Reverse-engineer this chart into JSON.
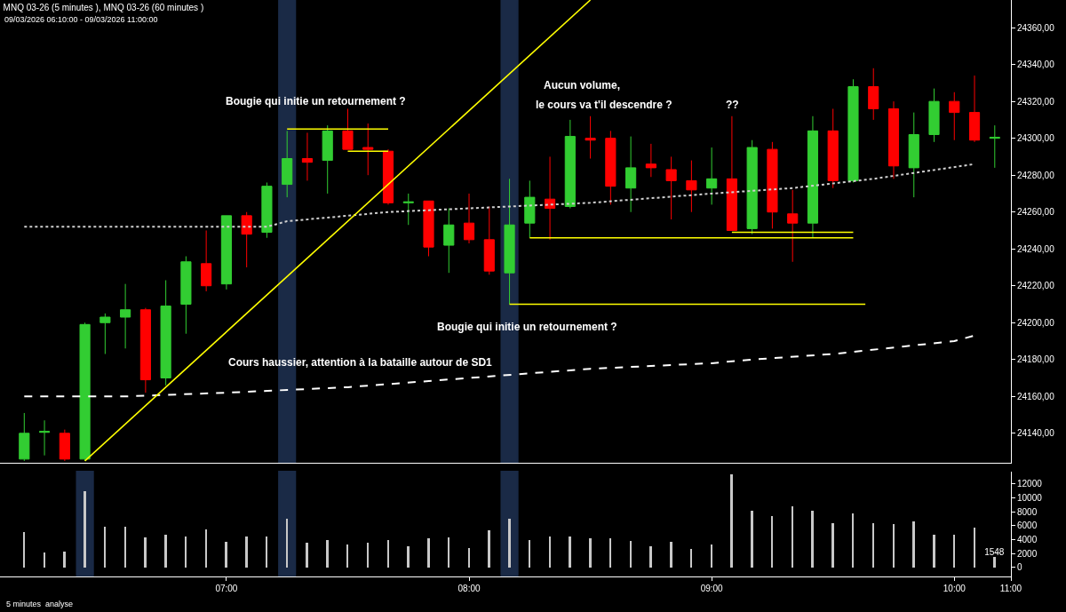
{
  "chart_data": [
    {
      "type": "candlestick",
      "title": "MNQ 03-26 (5 minutes ), MNQ 03-26 (60 minutes )",
      "subtitle": "09/03/2026 06:10:00 - 09/03/2026 11:00:00",
      "x": [
        "2026-03-09T06:10",
        "2026-03-09T06:15",
        "2026-03-09T06:20",
        "2026-03-09T06:25",
        "2026-03-09T06:30",
        "2026-03-09T06:35",
        "2026-03-09T06:40",
        "2026-03-09T06:45",
        "2026-03-09T06:50",
        "2026-03-09T06:55",
        "2026-03-09T07:00",
        "2026-03-09T07:05",
        "2026-03-09T07:10",
        "2026-03-09T07:15",
        "2026-03-09T07:20",
        "2026-03-09T07:25",
        "2026-03-09T07:30",
        "2026-03-09T07:35",
        "2026-03-09T07:40",
        "2026-03-09T07:45",
        "2026-03-09T07:50",
        "2026-03-09T07:55",
        "2026-03-09T08:00",
        "2026-03-09T08:05",
        "2026-03-09T08:10",
        "2026-03-09T08:15",
        "2026-03-09T08:20",
        "2026-03-09T08:25",
        "2026-03-09T08:30",
        "2026-03-09T08:35",
        "2026-03-09T08:40",
        "2026-03-09T08:45",
        "2026-03-09T08:50",
        "2026-03-09T08:55",
        "2026-03-09T09:00",
        "2026-03-09T09:05",
        "2026-03-09T09:10",
        "2026-03-09T09:15",
        "2026-03-09T09:20",
        "2026-03-09T09:25",
        "2026-03-09T09:30",
        "2026-03-09T09:35",
        "2026-03-09T09:40",
        "2026-03-09T09:45",
        "2026-03-09T09:50",
        "2026-03-09T09:55",
        "2026-03-09T10:00",
        "2026-03-09T10:05",
        "2026-03-09T10:10"
      ],
      "ohlc": [
        [
          24126,
          24151,
          24125,
          24140
        ],
        [
          24140.5,
          24147,
          24128,
          24141
        ],
        [
          24140,
          24142,
          24125,
          24126
        ],
        [
          24126,
          24200,
          24125,
          24199
        ],
        [
          24200,
          24205,
          24183,
          24203
        ],
        [
          24203,
          24221,
          24186,
          24207
        ],
        [
          24207,
          24208,
          24162,
          24169
        ],
        [
          24170,
          24223,
          24166,
          24209
        ],
        [
          24210,
          24236,
          24194,
          24233
        ],
        [
          24232,
          24250,
          24217,
          24220
        ],
        [
          24221,
          24258,
          24218,
          24258
        ],
        [
          24258,
          24260,
          24230,
          24248
        ],
        [
          24249,
          24276,
          24246,
          24274
        ],
        [
          24275,
          24304,
          24268,
          24289
        ],
        [
          24289,
          24303,
          24277,
          24287
        ],
        [
          24288,
          24307,
          24270,
          24304
        ],
        [
          24304,
          24316,
          24294,
          24294
        ],
        [
          24295,
          24308,
          24280,
          24294
        ],
        [
          24293,
          24294,
          24264,
          24265
        ],
        [
          24265,
          24270,
          24253,
          24265.5
        ],
        [
          24266,
          24266,
          24236,
          24241
        ],
        [
          24242,
          24262,
          24227,
          24253
        ],
        [
          24254,
          24270,
          24243,
          24245
        ],
        [
          24245,
          24263,
          24226,
          24228
        ],
        [
          24227,
          24278,
          24210,
          24253
        ],
        [
          24254,
          24277,
          24246,
          24268
        ],
        [
          24267,
          24290,
          24245,
          24262
        ],
        [
          24263,
          24310,
          24262,
          24301
        ],
        [
          24300,
          24312,
          24289,
          24299
        ],
        [
          24300,
          24304,
          24264,
          24274
        ],
        [
          24273,
          24301,
          24260,
          24284
        ],
        [
          24286,
          24297,
          24279,
          24284
        ],
        [
          24283,
          24290,
          24256,
          24277
        ],
        [
          24277,
          24288,
          24260,
          24272
        ],
        [
          24273,
          24295,
          24264,
          24278
        ],
        [
          24278,
          24312,
          24250,
          24250
        ],
        [
          24251,
          24299,
          24248,
          24295
        ],
        [
          24294,
          24298,
          24251,
          24260
        ],
        [
          24259,
          24272,
          24233,
          24254
        ],
        [
          24254,
          24312,
          24246,
          24304
        ],
        [
          24304,
          24316,
          24273,
          24277
        ],
        [
          24277,
          24332,
          24276,
          24328
        ],
        [
          24328,
          24338,
          24310,
          24316
        ],
        [
          24316,
          24320,
          24278,
          24285
        ],
        [
          24284,
          24314,
          24268,
          24302
        ],
        [
          24302,
          24327,
          24298,
          24320
        ],
        [
          24320,
          24325,
          24299,
          24314
        ],
        [
          24314,
          24334,
          24298,
          24299
        ],
        [
          24300,
          24307,
          24284,
          24300.5
        ]
      ],
      "colors": [
        "#32cd32",
        "#32cd32",
        "#ff0000",
        "#32cd32",
        "#32cd32",
        "#32cd32",
        "#ff0000",
        "#32cd32",
        "#32cd32",
        "#ff0000",
        "#32cd32",
        "#ff0000",
        "#32cd32",
        "#32cd32",
        "#ff0000",
        "#32cd32",
        "#ff0000",
        "#ff0000",
        "#ff0000",
        "#32cd32",
        "#ff0000",
        "#32cd32",
        "#ff0000",
        "#ff0000",
        "#32cd32",
        "#32cd32",
        "#ff0000",
        "#32cd32",
        "#ff0000",
        "#ff0000",
        "#32cd32",
        "#ff0000",
        "#ff0000",
        "#ff0000",
        "#32cd32",
        "#ff0000",
        "#32cd32",
        "#ff0000",
        "#ff0000",
        "#32cd32",
        "#ff0000",
        "#32cd32",
        "#ff0000",
        "#ff0000",
        "#32cd32",
        "#32cd32",
        "#ff0000",
        "#ff0000",
        "#32cd32"
      ],
      "series": [
        {
          "type": "line",
          "color": "#d0d0d0",
          "line_style": "dotted",
          "x": [
            "2026-03-09T06:10",
            "2026-03-09T07:10",
            "2026-03-09T07:15",
            "2026-03-09T07:40",
            "2026-03-09T08:00",
            "2026-03-09T08:30",
            "2026-03-09T09:00",
            "2026-03-09T09:20",
            "2026-03-09T09:40",
            "2026-03-09T10:05"
          ],
          "values": [
            24252,
            24252,
            24255,
            24260,
            24262,
            24265,
            24270,
            24273,
            24278,
            24286
          ]
        },
        {
          "type": "line",
          "color": "#ffffff",
          "line_style": "dashed",
          "x": [
            "2026-03-09T06:10",
            "2026-03-09T06:35",
            "2026-03-09T07:00",
            "2026-03-09T07:30",
            "2026-03-09T08:00",
            "2026-03-09T08:30",
            "2026-03-09T09:00",
            "2026-03-09T09:10",
            "2026-03-09T09:30",
            "2026-03-09T10:00",
            "2026-03-09T10:05"
          ],
          "values": [
            24160,
            24160,
            24162,
            24165,
            24170,
            24175,
            24178,
            24180,
            24183,
            24190,
            24193
          ]
        },
        {
          "type": "line",
          "color": "#ffff00",
          "line_style": "solid",
          "x": [
            "2026-03-09T06:25",
            "2026-03-09T08:30"
          ],
          "values": [
            24125,
            24375
          ]
        },
        {
          "type": "line",
          "color": "#ffff00",
          "line_style": "solid",
          "x": [
            "2026-03-09T07:15",
            "2026-03-09T07:40"
          ],
          "values": [
            24305,
            24305
          ]
        },
        {
          "type": "line",
          "color": "#ffff00",
          "line_style": "solid",
          "x": [
            "2026-03-09T07:30",
            "2026-03-09T07:40"
          ],
          "values": [
            24293,
            24293
          ]
        },
        {
          "type": "line",
          "color": "#ffff00",
          "line_style": "solid",
          "x": [
            "2026-03-09T08:15",
            "2026-03-09T09:35"
          ],
          "values": [
            24246,
            24246
          ]
        },
        {
          "type": "line",
          "color": "#ffff00",
          "line_style": "solid",
          "x": [
            "2026-03-09T09:05",
            "2026-03-09T09:35"
          ],
          "values": [
            24249,
            24249
          ]
        },
        {
          "type": "line",
          "color": "#ffff00",
          "line_style": "solid",
          "x": [
            "2026-03-09T08:10",
            "2026-03-09T09:38"
          ],
          "values": [
            24210,
            24210
          ]
        }
      ],
      "bands": [
        {
          "axis": "x",
          "from": "2026-03-09T07:13",
          "to": "2026-03-09T07:17",
          "color": "#4a78c8"
        },
        {
          "axis": "x",
          "from": "2026-03-09T08:08",
          "to": "2026-03-09T08:12",
          "color": "#4a78c8"
        }
      ],
      "annotations": [
        "Bougie qui initie un retournement ?",
        "Aucun volume,",
        "le cours va t'il descendre ?",
        "??",
        "Bougie qui initie un retournement ?",
        "Cours haussier, attention à la bataille autour de SD1"
      ],
      "xlim": [
        "2026-03-09T06:04",
        "2026-03-09T10:14"
      ],
      "ylim": [
        24124,
        24375
      ],
      "yticks": [
        {
          "value": 24140,
          "label": "24140,00"
        },
        {
          "value": 24160,
          "label": "24160,00"
        },
        {
          "value": 24180,
          "label": "24180,00"
        },
        {
          "value": 24200,
          "label": "24200,00"
        },
        {
          "value": 24220,
          "label": "24220,00"
        },
        {
          "value": 24240,
          "label": "24240,00"
        },
        {
          "value": 24260,
          "label": "24260,00"
        },
        {
          "value": 24280,
          "label": "24280,00"
        },
        {
          "value": 24300,
          "label": "24300,00"
        },
        {
          "value": 24320,
          "label": "24320,00"
        },
        {
          "value": 24340,
          "label": "24340,00"
        },
        {
          "value": 24360,
          "label": "24360,00"
        }
      ],
      "tick_labels": "y"
    },
    {
      "type": "bar",
      "x": [
        "2026-03-09T06:10",
        "2026-03-09T06:15",
        "2026-03-09T06:20",
        "2026-03-09T06:25",
        "2026-03-09T06:30",
        "2026-03-09T06:35",
        "2026-03-09T06:40",
        "2026-03-09T06:45",
        "2026-03-09T06:50",
        "2026-03-09T06:55",
        "2026-03-09T07:00",
        "2026-03-09T07:05",
        "2026-03-09T07:10",
        "2026-03-09T07:15",
        "2026-03-09T07:20",
        "2026-03-09T07:25",
        "2026-03-09T07:30",
        "2026-03-09T07:35",
        "2026-03-09T07:40",
        "2026-03-09T07:45",
        "2026-03-09T07:50",
        "2026-03-09T07:55",
        "2026-03-09T08:00",
        "2026-03-09T08:05",
        "2026-03-09T08:10",
        "2026-03-09T08:15",
        "2026-03-09T08:20",
        "2026-03-09T08:25",
        "2026-03-09T08:30",
        "2026-03-09T08:35",
        "2026-03-09T08:40",
        "2026-03-09T08:45",
        "2026-03-09T08:50",
        "2026-03-09T08:55",
        "2026-03-09T09:00",
        "2026-03-09T09:05",
        "2026-03-09T09:10",
        "2026-03-09T09:15",
        "2026-03-09T09:20",
        "2026-03-09T09:25",
        "2026-03-09T09:30",
        "2026-03-09T09:35",
        "2026-03-09T09:40",
        "2026-03-09T09:45",
        "2026-03-09T09:50",
        "2026-03-09T09:55",
        "2026-03-09T10:00",
        "2026-03-09T10:05",
        "2026-03-09T10:10"
      ],
      "series": [
        {
          "color": "#c8c8c8",
          "values": [
            5100,
            2200,
            2300,
            11000,
            5900,
            5800,
            4300,
            4700,
            4400,
            5500,
            3700,
            4400,
            4400,
            7000,
            3600,
            3900,
            3300,
            3500,
            3900,
            3000,
            4200,
            4300,
            2800,
            5300,
            7000,
            3900,
            4500,
            4500,
            4200,
            4200,
            3800,
            3100,
            3700,
            2700,
            3300,
            13400,
            8100,
            7400,
            8800,
            8100,
            6400,
            7800,
            6300,
            6200,
            6600,
            4700,
            4700,
            5700,
            1548
          ]
        }
      ],
      "bands": [
        {
          "axis": "x",
          "from": "2026-03-09T06:23",
          "to": "2026-03-09T06:27",
          "color": "#4a78c8"
        },
        {
          "axis": "x",
          "from": "2026-03-09T07:13",
          "to": "2026-03-09T07:17",
          "color": "#4a78c8"
        },
        {
          "axis": "x",
          "from": "2026-03-09T08:08",
          "to": "2026-03-09T08:12",
          "color": "#4a78c8"
        }
      ],
      "annotations": [
        "5 minutes  analyse"
      ],
      "xlim": [
        "2026-03-09T06:04",
        "2026-03-09T10:14"
      ],
      "xticks": [
        {
          "value": "2026-03-09T07:00",
          "label": "07:00"
        },
        {
          "value": "2026-03-09T08:00",
          "label": "08:00"
        },
        {
          "value": "2026-03-09T09:00",
          "label": "09:00"
        },
        {
          "value": "2026-03-09T10:00",
          "label": "10:00"
        },
        {
          "value": "2026-03-09T10:14",
          "label": "11:00"
        }
      ],
      "ylim": [
        -1300,
        13750
      ],
      "value_labels": [
        null,
        null,
        null,
        null,
        null,
        null,
        null,
        null,
        null,
        null,
        null,
        null,
        null,
        null,
        null,
        null,
        null,
        null,
        null,
        null,
        null,
        null,
        null,
        null,
        null,
        null,
        null,
        null,
        null,
        null,
        null,
        null,
        null,
        null,
        null,
        null,
        null,
        null,
        null,
        null,
        null,
        null,
        null,
        null,
        null,
        null,
        null,
        null,
        "1548"
      ],
      "yticks": [
        0,
        2000,
        4000,
        6000,
        8000,
        10000,
        12000
      ]
    }
  ]
}
